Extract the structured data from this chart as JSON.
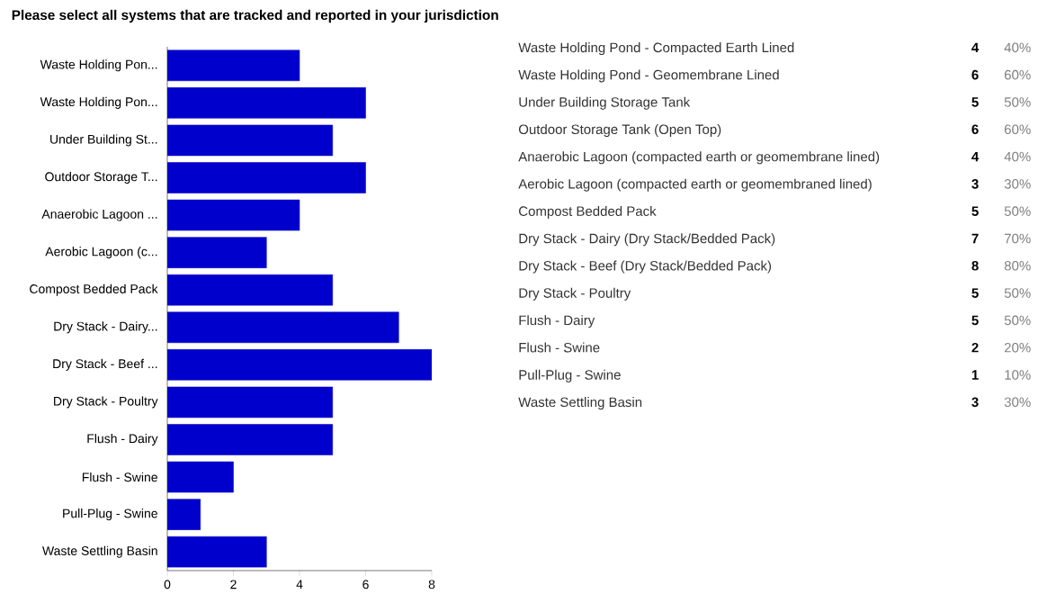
{
  "chart_data": [
    {
      "type": "bar",
      "orientation": "horizontal",
      "title": "Please select all systems that are tracked and reported in your jurisdiction",
      "categories": [
        "Waste Holding Pon...",
        "Waste Holding Pon...",
        "Under Building St...",
        "Outdoor Storage T...",
        "Anaerobic Lagoon ...",
        "Aerobic Lagoon (c...",
        "Compost Bedded Pack",
        "Dry Stack - Dairy...",
        "Dry Stack - Beef ...",
        "Dry Stack - Poultry",
        "Flush - Dairy",
        "Flush - Swine",
        "Pull-Plug - Swine",
        "Waste Settling Basin"
      ],
      "values": [
        4,
        6,
        5,
        6,
        4,
        3,
        5,
        7,
        8,
        5,
        5,
        2,
        1,
        3
      ],
      "color": "#0000cc",
      "xlim": [
        0,
        8
      ],
      "xticks": [
        0,
        2,
        4,
        6,
        8
      ]
    },
    {
      "type": "other",
      "categories": [
        "Waste Holding Pond - Compacted Earth Lined",
        "Waste Holding Pond - Geomembrane Lined",
        "Under Building Storage Tank",
        "Outdoor Storage Tank (Open Top)",
        "Anaerobic Lagoon (compacted earth or geomembrane lined)",
        "Aerobic Lagoon (compacted earth or geomembraned lined)",
        "Compost Bedded Pack",
        "Dry Stack - Dairy (Dry Stack/Bedded Pack)",
        "Dry Stack - Beef (Dry Stack/Bedded Pack)",
        "Dry Stack - Poultry",
        "Flush - Dairy",
        "Flush - Swine",
        "Pull-Plug - Swine",
        "Waste Settling Basin"
      ],
      "series": [
        {
          "color": "#000000",
          "values": [
            4,
            6,
            5,
            6,
            4,
            3,
            5,
            7,
            8,
            5,
            5,
            2,
            1,
            3
          ]
        },
        {
          "color": "#808080",
          "values": [
            40,
            60,
            50,
            60,
            40,
            30,
            50,
            70,
            80,
            50,
            50,
            20,
            10,
            30
          ],
          "value_labels": [
            "40%",
            "60%",
            "50%",
            "60%",
            "40%",
            "30%",
            "50%",
            "70%",
            "80%",
            "50%",
            "50%",
            "20%",
            "10%",
            "30%"
          ]
        }
      ],
      "data_labels": true
    }
  ]
}
